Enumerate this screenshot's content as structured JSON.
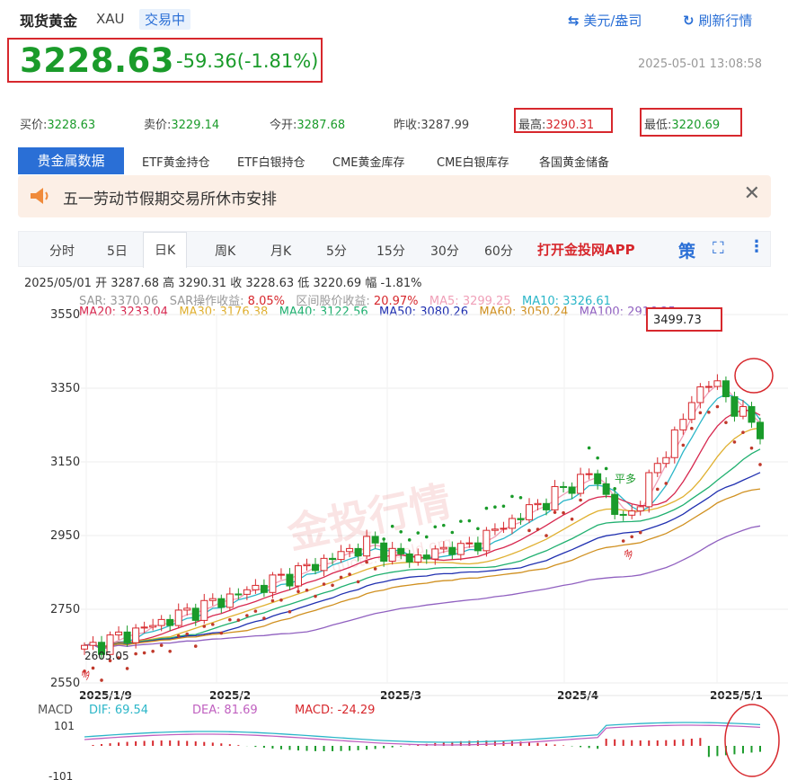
{
  "header": {
    "title": "现货黄金",
    "code": "XAU",
    "status": "交易中",
    "currency_link": "美元/盎司",
    "refresh_link": "刷新行情"
  },
  "quote": {
    "price": "3228.63",
    "change": "-59.36(-1.81%)",
    "timestamp": "2025-05-01 13:08:58"
  },
  "stats": [
    {
      "label": "买价:",
      "value": "3228.63"
    },
    {
      "label": "卖价:",
      "value": "3229.14"
    },
    {
      "label": "今开:",
      "value": "3287.68"
    },
    {
      "label": "昨收:",
      "value": "3287.99"
    },
    {
      "label": "最高:",
      "value": "3290.31"
    },
    {
      "label": "最低:",
      "value": "3220.69"
    }
  ],
  "data_tabs": [
    "贵金属数据",
    "ETF黄金持仓",
    "ETF白银持仓",
    "CME黄金库存",
    "CME白银库存",
    "各国黄金储备"
  ],
  "notice": {
    "text": "五一劳动节假期交易所休市安排"
  },
  "periods": [
    "分时",
    "5日",
    "日K",
    "周K",
    "月K",
    "5分",
    "15分",
    "30分",
    "60分"
  ],
  "app_link": "打开金投网APP",
  "strategy_label": "策",
  "ohlc": {
    "date": "2025/05/01",
    "open_label": "开",
    "open": "3287.68",
    "high_label": "高",
    "high": "3290.31",
    "close_label": "收",
    "close": "3228.63",
    "low_label": "低",
    "low": "3220.69",
    "range_label": "幅",
    "range": "-1.81%"
  },
  "indicators_row1": [
    {
      "label": "SAR:",
      "value": "3370.06",
      "color": "#999999"
    },
    {
      "label": "SAR操作收益:",
      "value": "8.05%",
      "color": "#d7282d"
    },
    {
      "label": "区间股价收益:",
      "value": "20.97%",
      "color": "#d7282d"
    },
    {
      "label": "MA5:",
      "value": "3299.25",
      "color": "#f0a0b8"
    },
    {
      "label": "MA10:",
      "value": "3326.61",
      "color": "#2bb6c8"
    }
  ],
  "indicators_row2": [
    {
      "label": "MA20:",
      "value": "3233.04",
      "color": "#d7284f"
    },
    {
      "label": "MA30:",
      "value": "3176.38",
      "color": "#e0b030"
    },
    {
      "label": "MA40:",
      "value": "3122.56",
      "color": "#20b070"
    },
    {
      "label": "MA50:",
      "value": "3080.26",
      "color": "#2030b0"
    },
    {
      "label": "MA60:",
      "value": "3050.24",
      "color": "#d09020"
    },
    {
      "label": "MA100:",
      "value": "2916.25",
      "color": "#9060c0"
    }
  ],
  "chart": {
    "y_ticks": [
      "3550",
      "3350",
      "3150",
      "2950",
      "2750",
      "2550"
    ],
    "x_ticks": [
      "2025/1/9",
      "2025/2",
      "2025/3",
      "2025/4",
      "2025/5/1"
    ],
    "high_label": "3499.73",
    "low_label": "2605.05",
    "watermark": "金投行情",
    "watermark_url": "quote.cngold.org",
    "marker_label": "平多",
    "sar_flag": "多"
  },
  "macd": {
    "title": "MACD",
    "dif_label": "DIF:",
    "dif": "69.54",
    "dea_label": "DEA:",
    "dea": "81.69",
    "macd_label": "MACD:",
    "macd": "-24.29",
    "y_top": "101",
    "y_bottom": "-101"
  },
  "colors": {
    "up": "#d7282d",
    "down": "#1a9b2a",
    "accent": "#2a6fd6"
  }
}
